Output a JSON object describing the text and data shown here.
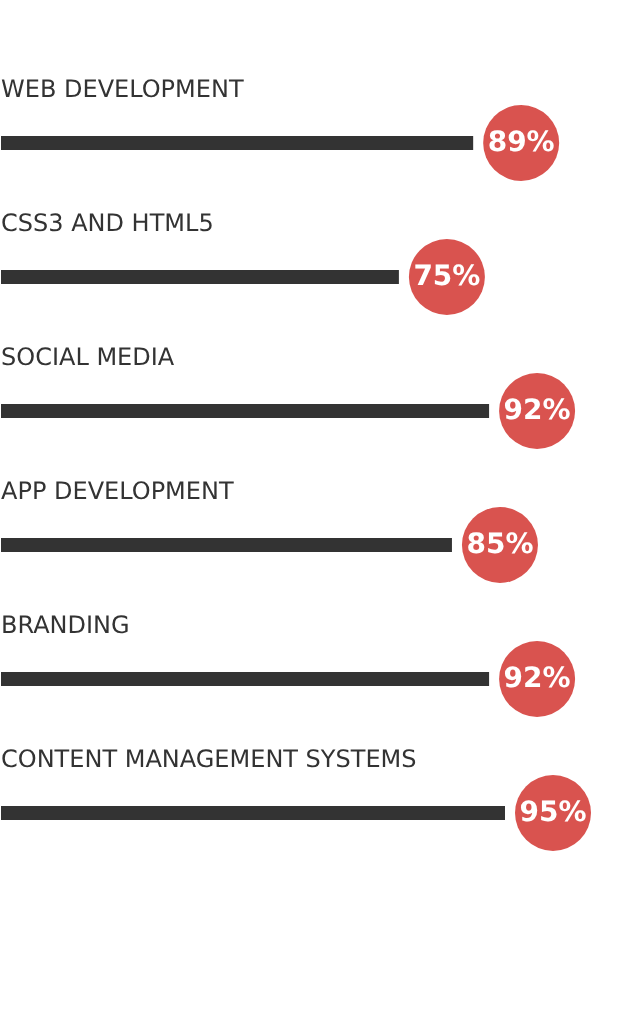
{
  "chart_data": {
    "type": "bar",
    "orientation": "horizontal",
    "categories": [
      "WEB DEVELOPMENT",
      "CSS3 AND HTML5",
      "SOCIAL MEDIA",
      "APP DEVELOPMENT",
      "BRANDING",
      "CONTENT MANAGEMENT SYSTEMS"
    ],
    "values": [
      89,
      75,
      92,
      85,
      92,
      95
    ],
    "value_labels": [
      "89%",
      "75%",
      "92%",
      "85%",
      "92%",
      "95%"
    ],
    "color": "#333333",
    "tick_labels": false,
    "grid": false
  }
}
